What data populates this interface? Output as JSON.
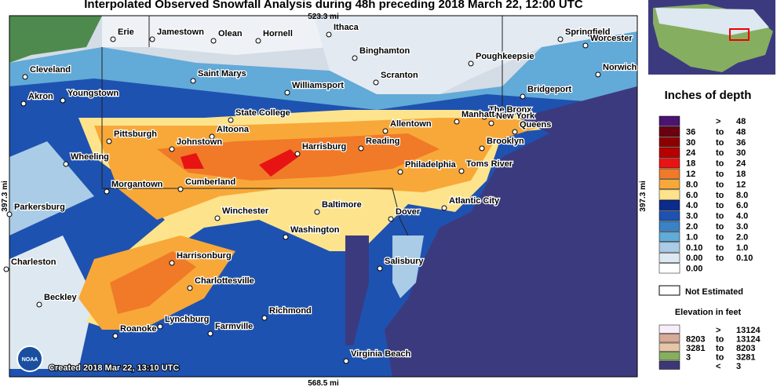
{
  "header": {
    "title": "Interpolated Observed Snowfall Analysis during 48h preceding 2018 March 22, 12:00 UTC",
    "top_scale": "523.3 mi",
    "bottom_scale": "568.5 mi",
    "left_scale": "397.3 mi",
    "right_scale": "397.3 mi"
  },
  "map": {
    "created": "Created 2018 Mar 22, 13:10 UTC",
    "cities": [
      "Erie",
      "Jamestown",
      "Olean",
      "Hornell",
      "Ithaca",
      "Springfield",
      "Worcester",
      "Binghamton",
      "Poughkeepsie",
      "Cleveland",
      "Saint Marys",
      "Williamsport",
      "Scranton",
      "Norwich",
      "Akron",
      "Youngstown",
      "Bridgeport",
      "State College",
      "The Bronx",
      "Manhattan",
      "New York",
      "Queens",
      "Allentown",
      "Altoona",
      "Pittsburgh",
      "Johnstown",
      "Brooklyn",
      "Reading",
      "Harrisburg",
      "Wheeling",
      "Philadelphia",
      "Toms River",
      "Morgantown",
      "Cumberland",
      "Parkersburg",
      "Atlantic City",
      "Winchester",
      "Baltimore",
      "Dover",
      "Washington",
      "Harrisonburg",
      "Charleston",
      "Salisbury",
      "Charlottesville",
      "Beckley",
      "Richmond",
      "Lynchburg",
      "Farmville",
      "Roanoke",
      "Virginia Beach"
    ]
  },
  "legend": {
    "title": "Inches of depth",
    "rows": [
      {
        "cells": [
          ">",
          "48"
        ],
        "color": "#4b1470"
      },
      {
        "cells": [
          "36",
          "to",
          "48"
        ],
        "color": "#6a0010"
      },
      {
        "cells": [
          "30",
          "to",
          "36"
        ],
        "color": "#8c0000"
      },
      {
        "cells": [
          "24",
          "to",
          "30"
        ],
        "color": "#b80000"
      },
      {
        "cells": [
          "18",
          "to",
          "24"
        ],
        "color": "#e81414"
      },
      {
        "cells": [
          "12",
          "to",
          "18"
        ],
        "color": "#f07a28"
      },
      {
        "cells": [
          "8.0",
          "to",
          "12"
        ],
        "color": "#f8a838"
      },
      {
        "cells": [
          "6.0",
          "to",
          "8.0"
        ],
        "color": "#fde48c"
      },
      {
        "cells": [
          "4.0",
          "to",
          "6.0"
        ],
        "color": "#0c2c8c"
      },
      {
        "cells": [
          "3.0",
          "to",
          "4.0"
        ],
        "color": "#1e52b0"
      },
      {
        "cells": [
          "2.0",
          "to",
          "3.0"
        ],
        "color": "#3a82c8"
      },
      {
        "cells": [
          "1.0",
          "to",
          "2.0"
        ],
        "color": "#62aad8"
      },
      {
        "cells": [
          "0.10",
          "to",
          "1.0"
        ],
        "color": "#aacce6"
      },
      {
        "cells": [
          "0.00",
          "to",
          "0.10"
        ],
        "color": "#dde8f0"
      },
      {
        "cells": [
          "0.00"
        ],
        "color": "#ffffff"
      }
    ],
    "not_estimated": "Not Estimated",
    "elevation_title": "Elevation in feet",
    "elevation_rows": [
      {
        "cells": [
          ">",
          "13124"
        ],
        "color": "#f8eef8"
      },
      {
        "cells": [
          "8203",
          "to",
          "13124"
        ],
        "color": "#d8aa98"
      },
      {
        "cells": [
          "3281",
          "to",
          "8203"
        ],
        "color": "#e6c6a4"
      },
      {
        "cells": [
          "3",
          "to",
          "3281"
        ],
        "color": "#86ae60"
      },
      {
        "cells": [
          "<",
          "3"
        ],
        "color": "#3c3878"
      }
    ]
  }
}
